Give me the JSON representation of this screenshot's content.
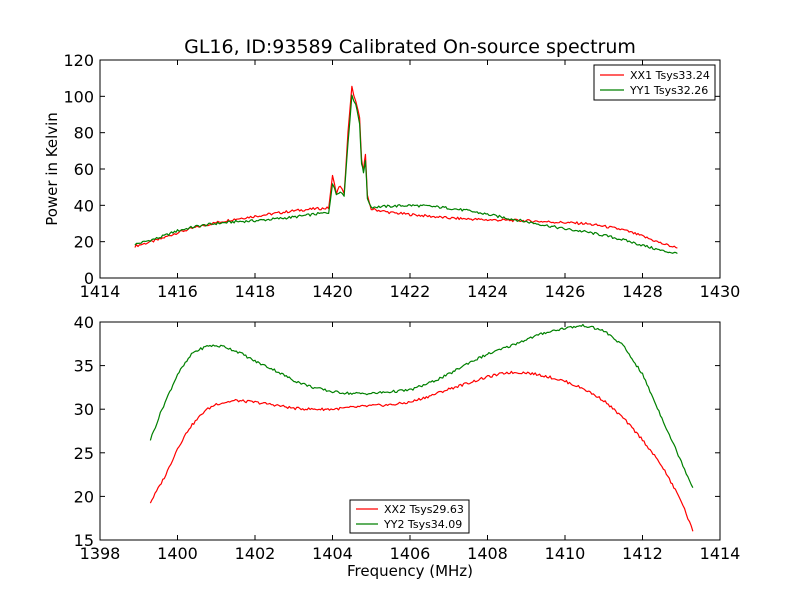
{
  "chart_data": [
    {
      "type": "line",
      "title": "GL16, ID:93589 Calibrated On-source spectrum",
      "xlabel": "",
      "ylabel": "Power in Kelvin",
      "xlim": [
        1414,
        1430
      ],
      "ylim": [
        0,
        120
      ],
      "xticks": [
        1414,
        1416,
        1418,
        1420,
        1422,
        1424,
        1426,
        1428,
        1430
      ],
      "yticks": [
        0,
        20,
        40,
        60,
        80,
        100,
        120
      ],
      "legend": "top-right",
      "grid": false,
      "series": [
        {
          "name": "XX1 Tsys33.24",
          "color": "#ff0000",
          "points": [
            [
              1414.9,
              17.5
            ],
            [
              1415.5,
              21
            ],
            [
              1416,
              25
            ],
            [
              1416.5,
              28
            ],
            [
              1417,
              30.5
            ],
            [
              1417.5,
              32.5
            ],
            [
              1418,
              34
            ],
            [
              1418.5,
              35.5
            ],
            [
              1419,
              37
            ],
            [
              1419.5,
              38
            ],
            [
              1419.9,
              38.5
            ],
            [
              1420.0,
              56
            ],
            [
              1420.1,
              47
            ],
            [
              1420.2,
              51
            ],
            [
              1420.3,
              46
            ],
            [
              1420.4,
              80
            ],
            [
              1420.5,
              105
            ],
            [
              1420.6,
              97
            ],
            [
              1420.7,
              88
            ],
            [
              1420.75,
              65
            ],
            [
              1420.8,
              60
            ],
            [
              1420.85,
              68
            ],
            [
              1420.9,
              45
            ],
            [
              1421.0,
              38
            ],
            [
              1421.5,
              36
            ],
            [
              1422,
              35
            ],
            [
              1422.5,
              34
            ],
            [
              1423,
              33
            ],
            [
              1423.5,
              32.5
            ],
            [
              1424,
              32
            ],
            [
              1424.5,
              31.8
            ],
            [
              1425,
              31.5
            ],
            [
              1425.5,
              31
            ],
            [
              1426,
              30.5
            ],
            [
              1426.5,
              30
            ],
            [
              1427,
              28.5
            ],
            [
              1427.5,
              26.5
            ],
            [
              1428,
              23
            ],
            [
              1428.5,
              19
            ],
            [
              1428.9,
              16.5
            ]
          ]
        },
        {
          "name": "YY1 Tsys32.26",
          "color": "#008000",
          "points": [
            [
              1414.9,
              18.5
            ],
            [
              1415.5,
              22
            ],
            [
              1416,
              26
            ],
            [
              1416.5,
              28.5
            ],
            [
              1417,
              30
            ],
            [
              1417.5,
              31
            ],
            [
              1418,
              31.5
            ],
            [
              1418.5,
              32.5
            ],
            [
              1419,
              33.5
            ],
            [
              1419.5,
              35
            ],
            [
              1419.9,
              36
            ],
            [
              1420.0,
              52
            ],
            [
              1420.1,
              46
            ],
            [
              1420.2,
              48
            ],
            [
              1420.3,
              45
            ],
            [
              1420.4,
              75
            ],
            [
              1420.5,
              100
            ],
            [
              1420.6,
              96
            ],
            [
              1420.7,
              85
            ],
            [
              1420.75,
              63
            ],
            [
              1420.8,
              58
            ],
            [
              1420.85,
              65
            ],
            [
              1420.9,
              44
            ],
            [
              1421.0,
              39
            ],
            [
              1421.5,
              39.5
            ],
            [
              1422,
              40
            ],
            [
              1422.5,
              39.5
            ],
            [
              1423,
              38.5
            ],
            [
              1423.5,
              37
            ],
            [
              1424,
              35
            ],
            [
              1424.5,
              33
            ],
            [
              1425,
              31
            ],
            [
              1425.5,
              29
            ],
            [
              1426,
              27
            ],
            [
              1426.5,
              25.5
            ],
            [
              1427,
              23.5
            ],
            [
              1427.5,
              21
            ],
            [
              1428,
              18
            ],
            [
              1428.5,
              15
            ],
            [
              1428.9,
              13.5
            ]
          ]
        }
      ]
    },
    {
      "type": "line",
      "title": "",
      "xlabel": "Frequency (MHz)",
      "ylabel": "",
      "xlim": [
        1398,
        1414
      ],
      "ylim": [
        15,
        40
      ],
      "xticks": [
        1398,
        1400,
        1402,
        1404,
        1406,
        1408,
        1410,
        1412,
        1414
      ],
      "yticks": [
        15,
        20,
        25,
        30,
        35,
        40
      ],
      "legend": "lower-center",
      "grid": false,
      "series": [
        {
          "name": "XX2 Tsys29.63",
          "color": "#ff0000",
          "points": [
            [
              1399.3,
              19.3
            ],
            [
              1399.7,
              22.5
            ],
            [
              1400,
              25.5
            ],
            [
              1400.3,
              27.8
            ],
            [
              1400.7,
              29.8
            ],
            [
              1401,
              30.6
            ],
            [
              1401.5,
              31
            ],
            [
              1402,
              30.8
            ],
            [
              1402.5,
              30.5
            ],
            [
              1403,
              30.1
            ],
            [
              1403.5,
              30
            ],
            [
              1404,
              30
            ],
            [
              1404.5,
              30.2
            ],
            [
              1405,
              30.4
            ],
            [
              1405.5,
              30.5
            ],
            [
              1406,
              30.8
            ],
            [
              1406.5,
              31.5
            ],
            [
              1407,
              32.3
            ],
            [
              1407.5,
              33
            ],
            [
              1408,
              33.7
            ],
            [
              1408.5,
              34.2
            ],
            [
              1409,
              34.2
            ],
            [
              1409.5,
              33.8
            ],
            [
              1410,
              33.2
            ],
            [
              1410.5,
              32.3
            ],
            [
              1411,
              31
            ],
            [
              1411.5,
              29
            ],
            [
              1412,
              26.5
            ],
            [
              1412.5,
              23.5
            ],
            [
              1413,
              19.5
            ],
            [
              1413.3,
              16
            ]
          ]
        },
        {
          "name": "YY2 Tsys34.09",
          "color": "#008000",
          "points": [
            [
              1399.3,
              26.5
            ],
            [
              1399.6,
              30
            ],
            [
              1400,
              34
            ],
            [
              1400.4,
              36.5
            ],
            [
              1400.8,
              37.3
            ],
            [
              1401.2,
              37.2
            ],
            [
              1401.6,
              36.5
            ],
            [
              1402,
              35.5
            ],
            [
              1402.5,
              34.5
            ],
            [
              1403,
              33.3
            ],
            [
              1403.5,
              32.5
            ],
            [
              1404,
              32
            ],
            [
              1404.5,
              31.8
            ],
            [
              1405,
              31.8
            ],
            [
              1405.5,
              32
            ],
            [
              1406,
              32.2
            ],
            [
              1406.5,
              33
            ],
            [
              1407,
              34
            ],
            [
              1407.5,
              35.3
            ],
            [
              1408,
              36.3
            ],
            [
              1408.5,
              37.1
            ],
            [
              1409,
              38
            ],
            [
              1409.5,
              38.8
            ],
            [
              1410,
              39.3
            ],
            [
              1410.5,
              39.6
            ],
            [
              1411,
              39
            ],
            [
              1411.5,
              37.3
            ],
            [
              1412,
              34
            ],
            [
              1412.5,
              29
            ],
            [
              1413,
              24
            ],
            [
              1413.3,
              21
            ]
          ]
        }
      ]
    }
  ]
}
